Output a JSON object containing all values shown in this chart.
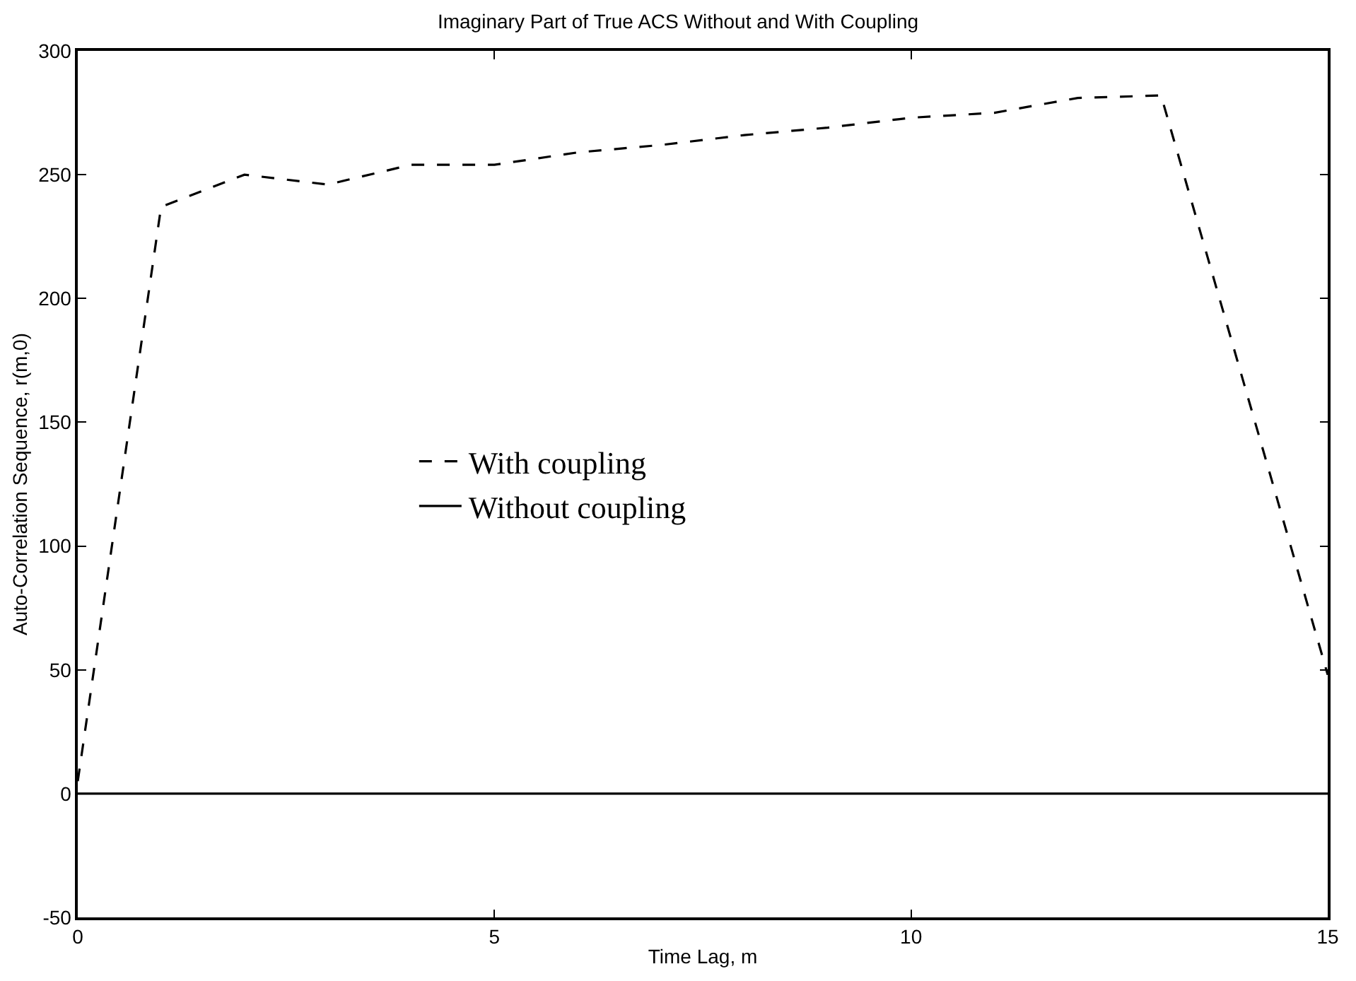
{
  "chart_data": {
    "type": "line",
    "title": "Imaginary Part of True ACS Without and With Coupling",
    "xlabel": "Time Lag, m",
    "ylabel": "Auto-Correlation Sequence, r(m,0)",
    "x": [
      0,
      1,
      2,
      3,
      4,
      5,
      6,
      7,
      8,
      9,
      10,
      11,
      12,
      13,
      14,
      15
    ],
    "series": [
      {
        "name": "With coupling",
        "color": "#000000",
        "line_style": "dashed",
        "values": [
          5,
          237,
          250,
          246,
          254,
          254,
          259,
          262,
          266,
          269,
          273,
          275,
          281,
          282,
          165,
          48
        ]
      },
      {
        "name": "Without coupling",
        "color": "#000000",
        "line_style": "solid",
        "values": [
          0,
          0,
          0,
          0,
          0,
          0,
          0,
          0,
          0,
          0,
          0,
          0,
          0,
          0,
          0,
          0
        ]
      }
    ],
    "xlim": [
      0,
      15
    ],
    "xticks": [
      0,
      5,
      10,
      15
    ],
    "ylim": [
      -50,
      300
    ],
    "yticks": [
      -50,
      0,
      50,
      100,
      150,
      200,
      250,
      300
    ],
    "legend": "center",
    "marker": "none"
  }
}
